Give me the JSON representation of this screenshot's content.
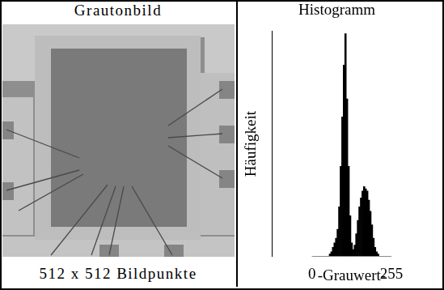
{
  "image_panel": {
    "title": "Grautonbild",
    "caption": "512 x 512 Bildpunkte"
  },
  "chart_data": {
    "type": "histogram",
    "title": "Histogramm",
    "x_label": "-Grauwert-",
    "y_label": "Häufigkeit",
    "bins": [
      0,
      5,
      10,
      15,
      20,
      25,
      30,
      35,
      40,
      45,
      50,
      55,
      60,
      65,
      70,
      75,
      80,
      85,
      90,
      95,
      100,
      105,
      110,
      115,
      120,
      125,
      130,
      135,
      140,
      145,
      150,
      155,
      160,
      165,
      170,
      175,
      180,
      185,
      190,
      195,
      200,
      205,
      210,
      215,
      220,
      225,
      230,
      235,
      240,
      245,
      250,
      255
    ],
    "values": [
      0,
      0,
      0,
      0,
      0,
      0,
      0,
      0,
      0,
      0,
      0,
      1,
      2,
      4,
      6,
      8,
      12,
      22,
      40,
      62,
      85,
      99,
      70,
      40,
      18,
      6,
      3,
      5,
      10,
      16,
      22,
      26,
      29,
      31,
      30,
      29,
      25,
      20,
      14,
      8,
      4,
      2,
      1,
      0,
      0,
      0,
      0,
      0,
      0,
      0,
      0
    ],
    "color": "#000000",
    "xlim": [
      0,
      255
    ],
    "xticks": [
      0,
      255
    ],
    "ylim": [
      0,
      100
    ],
    "grid": false,
    "tick_labels": "x"
  }
}
